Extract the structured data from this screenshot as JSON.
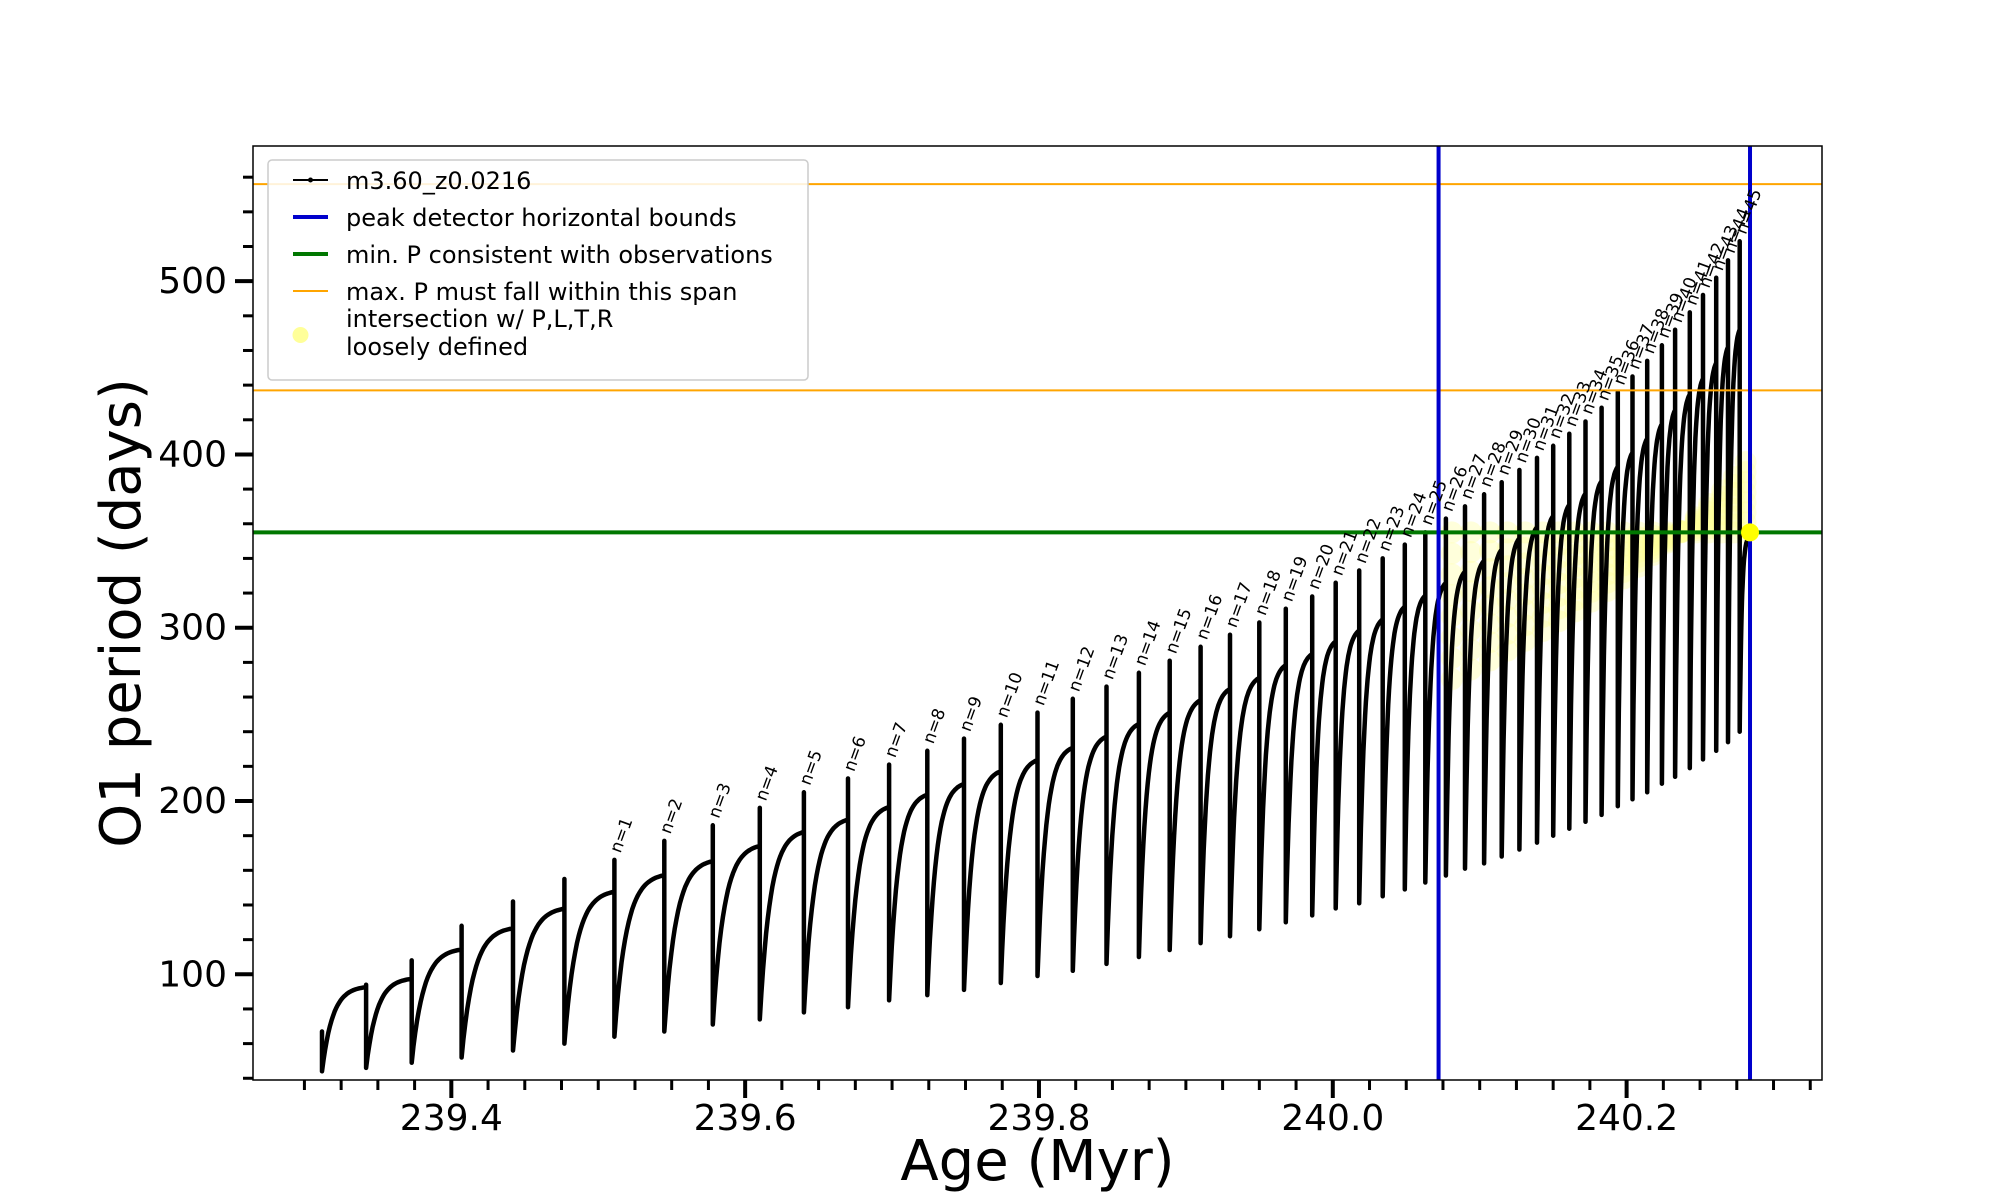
{
  "chart_data": {
    "type": "line",
    "xlabel": "Age (Myr)",
    "ylabel": "O1 period (days)",
    "xlim": [
      239.265,
      240.333
    ],
    "ylim": [
      39,
      578
    ],
    "xticks_major": [
      239.4,
      239.6,
      239.8,
      240.0,
      240.2
    ],
    "xtick_labels": [
      "239.4",
      "239.6",
      "239.8",
      "240.0",
      "240.2"
    ],
    "yticks_major": [
      100,
      200,
      300,
      400,
      500
    ],
    "ytick_labels": [
      "100",
      "200",
      "300",
      "400",
      "500"
    ],
    "grid": false,
    "legend_position": "top-left",
    "legend": [
      {
        "label": "m3.60_z0.0216",
        "style": "line-marker",
        "color": "#000000"
      },
      {
        "label": "peak detector horizontal bounds",
        "style": "line",
        "color": "#0000cc"
      },
      {
        "label": "min. P consistent with observations",
        "style": "line",
        "color": "#007700"
      },
      {
        "label": "max. P must fall within this span",
        "style": "line",
        "color": "#ffa500"
      },
      {
        "label": "intersection w/ P,L,T,R",
        "label2": "loosely defined",
        "style": "marker",
        "color": "#ffff99"
      }
    ],
    "vlines": {
      "x": [
        240.072,
        240.284
      ],
      "color": "#0000cc"
    },
    "hline_min": {
      "y": 355,
      "color": "#007700"
    },
    "hlines_max": {
      "y": [
        437,
        556
      ],
      "color": "#ffa500"
    },
    "intersection_point": {
      "x": 240.284,
      "y": 355,
      "color": "#ffff00"
    },
    "track": {
      "start_x": 239.312,
      "start_min": 44,
      "start_max": 67,
      "cycles": [
        {
          "x": 239.342,
          "min": 46,
          "max": 94
        },
        {
          "x": 239.373,
          "min": 49,
          "max": 108
        },
        {
          "x": 239.407,
          "min": 52,
          "max": 128
        },
        {
          "x": 239.442,
          "min": 56,
          "max": 142
        },
        {
          "x": 239.477,
          "min": 60,
          "max": 155
        },
        {
          "x": 239.511,
          "min": 64,
          "max": 166,
          "label": "n=1"
        },
        {
          "x": 239.545,
          "min": 67,
          "max": 177,
          "label": "n=2"
        },
        {
          "x": 239.578,
          "min": 71,
          "max": 186,
          "label": "n=3"
        },
        {
          "x": 239.61,
          "min": 74,
          "max": 196,
          "label": "n=4"
        },
        {
          "x": 239.64,
          "min": 78,
          "max": 205,
          "label": "n=5"
        },
        {
          "x": 239.67,
          "min": 81,
          "max": 213,
          "label": "n=6"
        },
        {
          "x": 239.698,
          "min": 85,
          "max": 221,
          "label": "n=7"
        },
        {
          "x": 239.724,
          "min": 88,
          "max": 229,
          "label": "n=8"
        },
        {
          "x": 239.749,
          "min": 91,
          "max": 236,
          "label": "n=9"
        },
        {
          "x": 239.774,
          "min": 95,
          "max": 244,
          "label": "n=10"
        },
        {
          "x": 239.799,
          "min": 99,
          "max": 251,
          "label": "n=11"
        },
        {
          "x": 239.823,
          "min": 102,
          "max": 259,
          "label": "n=12"
        },
        {
          "x": 239.846,
          "min": 106,
          "max": 266,
          "label": "n=13"
        },
        {
          "x": 239.868,
          "min": 110,
          "max": 274,
          "label": "n=14"
        },
        {
          "x": 239.889,
          "min": 114,
          "max": 281,
          "label": "n=15"
        },
        {
          "x": 239.91,
          "min": 118,
          "max": 289,
          "label": "n=16"
        },
        {
          "x": 239.93,
          "min": 122,
          "max": 296,
          "label": "n=17"
        },
        {
          "x": 239.95,
          "min": 126,
          "max": 303,
          "label": "n=18"
        },
        {
          "x": 239.968,
          "min": 130,
          "max": 311,
          "label": "n=19"
        },
        {
          "x": 239.986,
          "min": 134,
          "max": 318,
          "label": "n=20"
        },
        {
          "x": 240.002,
          "min": 138,
          "max": 326,
          "label": "n=21"
        },
        {
          "x": 240.018,
          "min": 141,
          "max": 333,
          "label": "n=22"
        },
        {
          "x": 240.034,
          "min": 145,
          "max": 340,
          "label": "n=23"
        },
        {
          "x": 240.049,
          "min": 149,
          "max": 348,
          "label": "n=24"
        },
        {
          "x": 240.063,
          "min": 153,
          "max": 355,
          "label": "n=25"
        },
        {
          "x": 240.077,
          "min": 157,
          "max": 363,
          "label": "n=26"
        },
        {
          "x": 240.09,
          "min": 161,
          "max": 370,
          "label": "n=27"
        },
        {
          "x": 240.103,
          "min": 164,
          "max": 377,
          "label": "n=28"
        },
        {
          "x": 240.115,
          "min": 168,
          "max": 384,
          "label": "n=29"
        },
        {
          "x": 240.127,
          "min": 172,
          "max": 391,
          "label": "n=30"
        },
        {
          "x": 240.139,
          "min": 176,
          "max": 398,
          "label": "n=31"
        },
        {
          "x": 240.15,
          "min": 180,
          "max": 405,
          "label": "n=32"
        },
        {
          "x": 240.161,
          "min": 184,
          "max": 412,
          "label": "n=33"
        },
        {
          "x": 240.172,
          "min": 188,
          "max": 419,
          "label": "n=34"
        },
        {
          "x": 240.183,
          "min": 192,
          "max": 427,
          "label": "n=35"
        },
        {
          "x": 240.194,
          "min": 197,
          "max": 436,
          "label": "n=36"
        },
        {
          "x": 240.204,
          "min": 201,
          "max": 445,
          "label": "n=37"
        },
        {
          "x": 240.214,
          "min": 205,
          "max": 454,
          "label": "n=38"
        },
        {
          "x": 240.224,
          "min": 210,
          "max": 463,
          "label": "n=39"
        },
        {
          "x": 240.233,
          "min": 214,
          "max": 472,
          "label": "n=40"
        },
        {
          "x": 240.243,
          "min": 219,
          "max": 482,
          "label": "n=41"
        },
        {
          "x": 240.252,
          "min": 224,
          "max": 492,
          "label": "n=42"
        },
        {
          "x": 240.261,
          "min": 229,
          "max": 502,
          "label": "n=43"
        },
        {
          "x": 240.269,
          "min": 234,
          "max": 512,
          "label": "n=44"
        },
        {
          "x": 240.277,
          "min": 240,
          "max": 523,
          "label": "n=45"
        }
      ]
    }
  }
}
